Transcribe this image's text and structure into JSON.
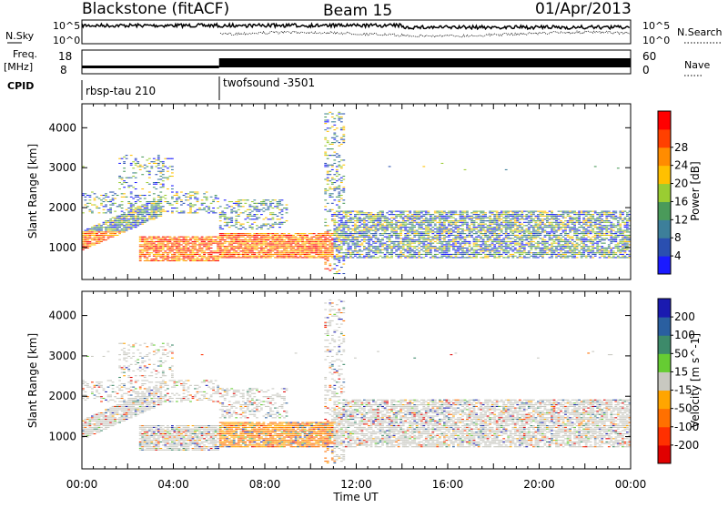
{
  "header": {
    "station": "Blackstone (fitACF)",
    "beam": "Beam 15",
    "date": "01/Apr/2013"
  },
  "strips": {
    "nsky_label": "N.Sky",
    "nsky_ticks": [
      "10^5",
      "10^0"
    ],
    "nsearch_label": "N.Search",
    "nsearch_ticks": [
      "10^5",
      "10^0"
    ],
    "freq_label": "Freq.",
    "freq_unit": "[MHz]",
    "freq_ticks": [
      "18",
      "8"
    ],
    "nave_label": "Nave",
    "nave_ticks": [
      "60",
      "0"
    ],
    "cpid_label": "CPID",
    "cpid_segments": [
      {
        "name": "rbsp-tau 210",
        "start_hour": 0,
        "end_hour": 6
      },
      {
        "name": "twofsound -3501",
        "start_hour": 6,
        "end_hour": 24
      }
    ]
  },
  "chart_data": [
    {
      "type": "heatmap",
      "name": "power-panel",
      "ylabel": "Slant Range [km]",
      "yticks": [
        1000,
        2000,
        3000,
        4000
      ],
      "ylim": [
        200,
        4600
      ],
      "xlim_hours": [
        0,
        24
      ],
      "colorbar": {
        "label": "Power [dB]",
        "ticks": [
          "4",
          "8",
          "12",
          "16",
          "20",
          "24",
          "28"
        ],
        "colors": [
          "#1a1aff",
          "#2a4fb0",
          "#3d7f9a",
          "#4a9a5a",
          "#9acd32",
          "#ffc000",
          "#ff8c00",
          "#ff4000",
          "#ff0000"
        ]
      },
      "regions": [
        {
          "t0": 0.0,
          "t1": 3.5,
          "r0": 900,
          "r1": 1600,
          "value_level": "high"
        },
        {
          "t0": 3.5,
          "t1": 11.0,
          "r0": 700,
          "r1": 1400,
          "value_level": "high"
        },
        {
          "t0": 11.0,
          "t1": 24.0,
          "r0": 700,
          "r1": 2000,
          "value_level": "mixed"
        },
        {
          "t0": 0.0,
          "t1": 6.0,
          "r0": 1800,
          "r1": 3200,
          "value_level": "low"
        }
      ]
    },
    {
      "type": "heatmap",
      "name": "velocity-panel",
      "ylabel": "Slant Range [km]",
      "yticks": [
        1000,
        2000,
        3000,
        4000
      ],
      "ylim": [
        200,
        4600
      ],
      "xlim_hours": [
        0,
        24
      ],
      "xticks": [
        "00:00",
        "04:00",
        "08:00",
        "12:00",
        "16:00",
        "20:00",
        "00:00"
      ],
      "xlabel": "Time UT",
      "colorbar": {
        "label": "Velocity [m s^-1]",
        "ticks": [
          "200",
          "100",
          "50",
          "15",
          "-15",
          "-50",
          "-100",
          "-200"
        ],
        "colors": [
          "#1a1ab0",
          "#2a5fa0",
          "#3d8a6a",
          "#66cc33",
          "#c8c8c0",
          "#ffa500",
          "#ff7000",
          "#ff3000",
          "#e00000"
        ]
      }
    }
  ]
}
